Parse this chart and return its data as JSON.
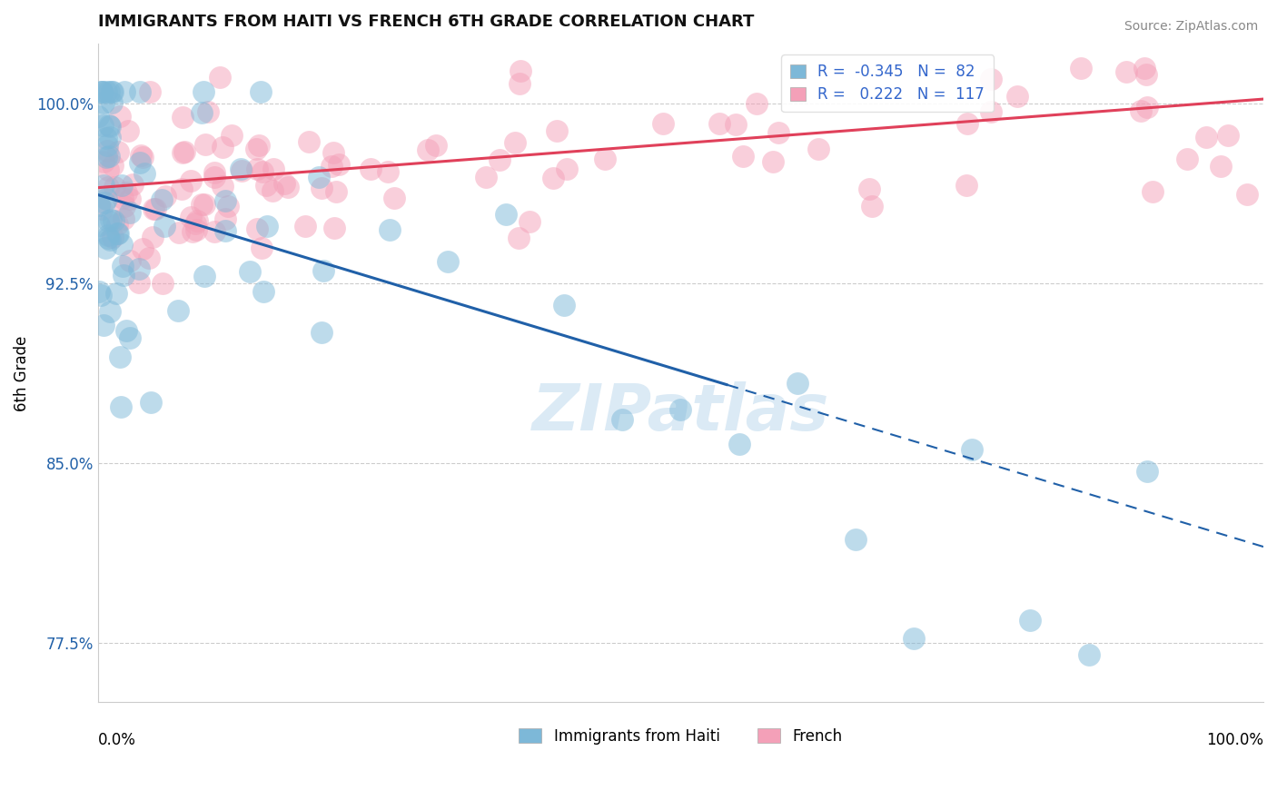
{
  "title": "IMMIGRANTS FROM HAITI VS FRENCH 6TH GRADE CORRELATION CHART",
  "source": "Source: ZipAtlas.com",
  "ylabel": "6th Grade",
  "xlim": [
    0,
    100
  ],
  "ylim": [
    75.0,
    102.5
  ],
  "yticks": [
    77.5,
    85.0,
    92.5,
    100.0
  ],
  "ytick_labels": [
    "77.5%",
    "85.0%",
    "92.5%",
    "100.0%"
  ],
  "r_haiti": -0.345,
  "n_haiti": 82,
  "r_french": 0.222,
  "n_french": 117,
  "color_haiti": "#7db8d8",
  "color_french": "#f4a0b8",
  "color_trendline_haiti": "#2060a8",
  "color_trendline_french": "#e0405a",
  "legend_label_haiti": "Immigrants from Haiti",
  "legend_label_french": "French",
  "haiti_trend_start_x": 0,
  "haiti_trend_start_y": 96.2,
  "haiti_trend_end_x": 100,
  "haiti_trend_end_y": 81.5,
  "haiti_solid_end_x": 54,
  "french_trend_start_x": 0,
  "french_trend_start_y": 96.5,
  "french_trend_end_x": 100,
  "french_trend_end_y": 100.2,
  "watermark_color": "#c8dff0",
  "grid_color": "#cccccc"
}
